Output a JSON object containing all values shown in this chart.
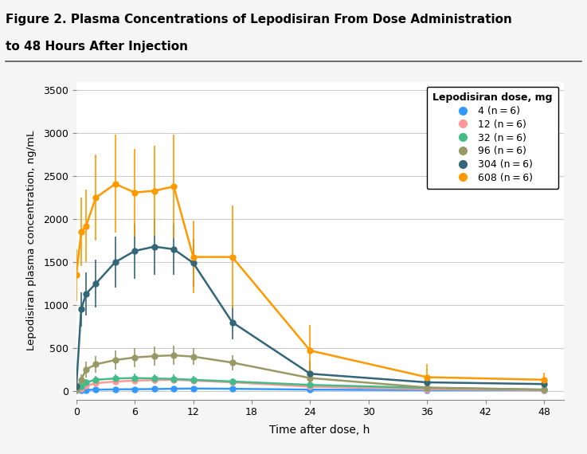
{
  "title_line1": "Figure 2. Plasma Concentrations of Lepodisiran From Dose Administration",
  "title_line2": "to 48 Hours After Injection",
  "xlabel": "Time after dose, h",
  "ylabel": "Lepodisiran plasma concentration, ng/mL",
  "legend_title": "Lepodisiran dose, mg",
  "xlim": [
    0,
    50
  ],
  "ylim": [
    -100,
    3600
  ],
  "xticks": [
    0,
    6,
    12,
    18,
    24,
    30,
    36,
    42,
    48
  ],
  "yticks": [
    0,
    500,
    1000,
    1500,
    2000,
    2500,
    3000,
    3500
  ],
  "series": [
    {
      "label": "4 (n = 6)",
      "color": "#3399FF",
      "x": [
        0,
        0.5,
        1,
        2,
        4,
        6,
        8,
        10,
        12,
        16,
        24,
        36,
        48
      ],
      "y": [
        5,
        10,
        12,
        15,
        18,
        20,
        22,
        25,
        28,
        25,
        15,
        10,
        8
      ],
      "yerr": [
        3,
        5,
        5,
        5,
        6,
        6,
        7,
        7,
        8,
        7,
        5,
        4,
        3
      ]
    },
    {
      "label": "12 (n = 6)",
      "color": "#FF9999",
      "x": [
        0,
        0.5,
        1,
        2,
        4,
        6,
        8,
        10,
        12,
        16,
        24,
        36,
        48
      ],
      "y": [
        10,
        30,
        60,
        90,
        110,
        120,
        125,
        130,
        120,
        100,
        50,
        20,
        10
      ],
      "yerr": [
        5,
        15,
        25,
        35,
        40,
        40,
        40,
        40,
        40,
        35,
        20,
        10,
        5
      ]
    },
    {
      "label": "32 (n = 6)",
      "color": "#44BB88",
      "x": [
        0,
        0.5,
        1,
        2,
        4,
        6,
        8,
        10,
        12,
        16,
        24,
        36,
        48
      ],
      "y": [
        15,
        55,
        100,
        130,
        145,
        150,
        145,
        140,
        130,
        110,
        70,
        35,
        15
      ],
      "yerr": [
        8,
        25,
        40,
        45,
        50,
        50,
        50,
        50,
        45,
        40,
        25,
        15,
        8
      ]
    },
    {
      "label": "96 (n = 6)",
      "color": "#999966",
      "x": [
        0,
        0.5,
        1,
        2,
        4,
        6,
        8,
        10,
        12,
        16,
        24,
        36,
        48
      ],
      "y": [
        30,
        130,
        250,
        310,
        360,
        390,
        405,
        415,
        400,
        330,
        150,
        40,
        15
      ],
      "yerr": [
        15,
        60,
        90,
        100,
        110,
        110,
        110,
        110,
        100,
        90,
        50,
        20,
        8
      ]
    },
    {
      "label": "304 (n = 6)",
      "color": "#336677",
      "x": [
        0,
        0.5,
        1,
        2,
        4,
        6,
        8,
        10,
        12,
        16,
        24,
        36,
        48
      ],
      "y": [
        50,
        950,
        1130,
        1250,
        1500,
        1630,
        1680,
        1650,
        1490,
        800,
        200,
        100,
        80
      ],
      "yerr": [
        25,
        200,
        250,
        280,
        300,
        320,
        330,
        300,
        280,
        200,
        150,
        80,
        40
      ]
    },
    {
      "label": "608 (n = 6)",
      "color": "#FF9900",
      "x": [
        0,
        0.5,
        1,
        2,
        4,
        6,
        8,
        10,
        12,
        16,
        24,
        36,
        48
      ],
      "y": [
        1350,
        1850,
        1920,
        2250,
        2410,
        2310,
        2330,
        2380,
        1560,
        1560,
        470,
        160,
        130
      ],
      "yerr": [
        300,
        400,
        420,
        500,
        570,
        510,
        520,
        600,
        420,
        600,
        300,
        150,
        80
      ]
    }
  ],
  "bg_color": "#FFFFFF",
  "grid_color": "#CCCCCC",
  "fig_bg": "#F5F5F5"
}
